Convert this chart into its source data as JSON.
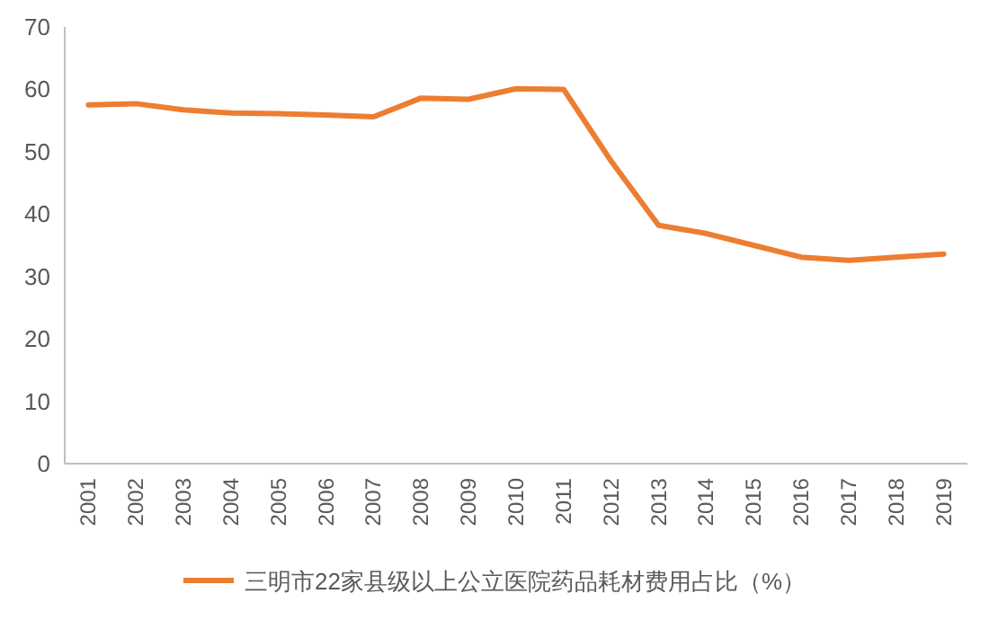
{
  "chart_data": {
    "type": "line",
    "categories": [
      "2001",
      "2002",
      "2003",
      "2004",
      "2005",
      "2006",
      "2007",
      "2008",
      "2009",
      "2010",
      "2011",
      "2012",
      "2013",
      "2014",
      "2015",
      "2016",
      "2017",
      "2018",
      "2019"
    ],
    "series": [
      {
        "name": "三明市22家县级以上公立医院药品耗材费用占比（%）",
        "color": "#ed7d31",
        "values": [
          57.5,
          57.7,
          56.7,
          56.2,
          56.1,
          55.9,
          55.6,
          58.6,
          58.4,
          60.1,
          60.0,
          48.5,
          38.2,
          36.9,
          35.0,
          33.1,
          32.6,
          33.1,
          33.6
        ]
      }
    ],
    "ylim": [
      0,
      70
    ],
    "yticks": [
      0,
      10,
      20,
      30,
      40,
      50,
      60,
      70
    ],
    "grid": false,
    "legend": "bottom",
    "marker": "none",
    "line_style": "solid"
  }
}
